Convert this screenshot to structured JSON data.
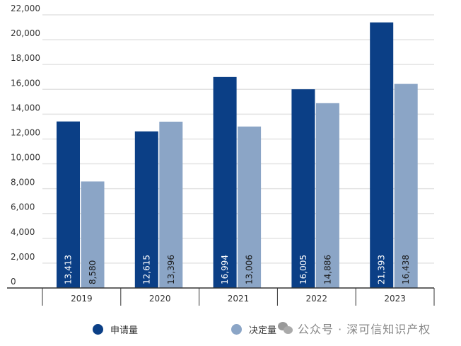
{
  "chart_data": {
    "type": "bar",
    "title": "",
    "xlabel": "",
    "ylabel": "",
    "categories": [
      "2019",
      "2020",
      "2021",
      "2022",
      "2023"
    ],
    "series": [
      {
        "name": "申请量",
        "color": "#0b3f86",
        "values": [
          13413,
          12615,
          16994,
          16005,
          21393
        ],
        "labels": [
          "13,413",
          "12,615",
          "16,994",
          "16,005",
          "21,393"
        ],
        "label_color": "#ffffff"
      },
      {
        "name": "决定量",
        "color": "#8ba5c6",
        "values": [
          8580,
          13396,
          13006,
          14886,
          16438
        ],
        "labels": [
          "8,580",
          "13,396",
          "13,006",
          "14,886",
          "16,438"
        ],
        "label_color": "#1a1a1a"
      }
    ],
    "ylim": [
      0,
      22000
    ],
    "yticks": [
      0,
      2000,
      4000,
      6000,
      8000,
      10000,
      12000,
      14000,
      16000,
      18000,
      20000,
      22000
    ],
    "ytick_labels": [
      "0",
      "2,000",
      "4,000",
      "6,000",
      "8,000",
      "10,000",
      "12,000",
      "14,000",
      "16,000",
      "18,000",
      "20,000",
      "22,000"
    ],
    "grid": true,
    "legend_position": "bottom"
  },
  "watermark": "公众号 · 深可信知识产权"
}
